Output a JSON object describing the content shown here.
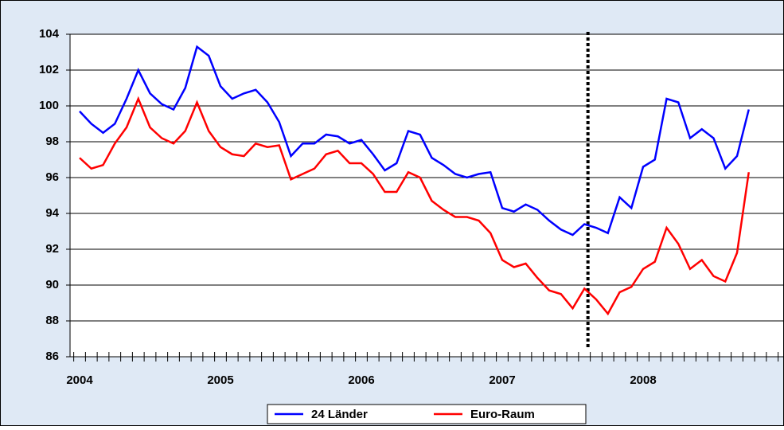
{
  "chart_data": {
    "type": "line",
    "categories": [
      "2004",
      null,
      null,
      null,
      null,
      null,
      null,
      null,
      null,
      null,
      null,
      null,
      "2005",
      null,
      null,
      null,
      null,
      null,
      null,
      null,
      null,
      null,
      null,
      null,
      "2006",
      null,
      null,
      null,
      null,
      null,
      null,
      null,
      null,
      null,
      null,
      null,
      "2007",
      null,
      null,
      null,
      null,
      null,
      null,
      null,
      null,
      null,
      null,
      null,
      "2008",
      null,
      null,
      null,
      null,
      null,
      null,
      null,
      null,
      null
    ],
    "series": [
      {
        "name": "24 Länder",
        "color": "#0000ff",
        "values": [
          99.7,
          99.0,
          98.5,
          99.0,
          100.4,
          102.0,
          100.7,
          100.1,
          99.8,
          101.0,
          103.3,
          102.8,
          101.1,
          100.4,
          100.7,
          100.9,
          100.2,
          99.1,
          97.2,
          97.9,
          97.9,
          98.4,
          98.3,
          97.9,
          98.1,
          97.3,
          96.4,
          96.8,
          98.6,
          98.4,
          97.1,
          96.7,
          96.2,
          96.0,
          96.2,
          96.3,
          94.3,
          94.1,
          94.5,
          94.2,
          93.6,
          93.1,
          92.8,
          93.4,
          93.2,
          92.9,
          94.9,
          94.3,
          96.6,
          97.0,
          100.4,
          100.2,
          98.2,
          98.7,
          98.2,
          96.5,
          97.2,
          99.8
        ]
      },
      {
        "name": "Euro-Raum",
        "color": "#ff0000",
        "values": [
          97.1,
          96.5,
          96.7,
          97.9,
          98.8,
          100.4,
          98.8,
          98.2,
          97.9,
          98.6,
          100.2,
          98.6,
          97.7,
          97.3,
          97.2,
          97.9,
          97.7,
          97.8,
          95.9,
          96.2,
          96.5,
          97.3,
          97.5,
          96.8,
          96.8,
          96.2,
          95.2,
          95.2,
          96.3,
          96.0,
          94.7,
          94.2,
          93.8,
          93.8,
          93.6,
          92.9,
          91.4,
          91.0,
          91.2,
          90.4,
          89.7,
          89.5,
          88.7,
          89.8,
          89.2,
          88.4,
          89.6,
          89.9,
          90.9,
          91.3,
          93.2,
          92.3,
          90.9,
          91.4,
          90.5,
          90.2,
          91.8,
          96.3
        ]
      }
    ],
    "ylim": [
      86,
      104
    ],
    "yticks": [
      86,
      88,
      90,
      92,
      94,
      96,
      98,
      100,
      102,
      104
    ],
    "grid": true,
    "legend": "bottom"
  }
}
